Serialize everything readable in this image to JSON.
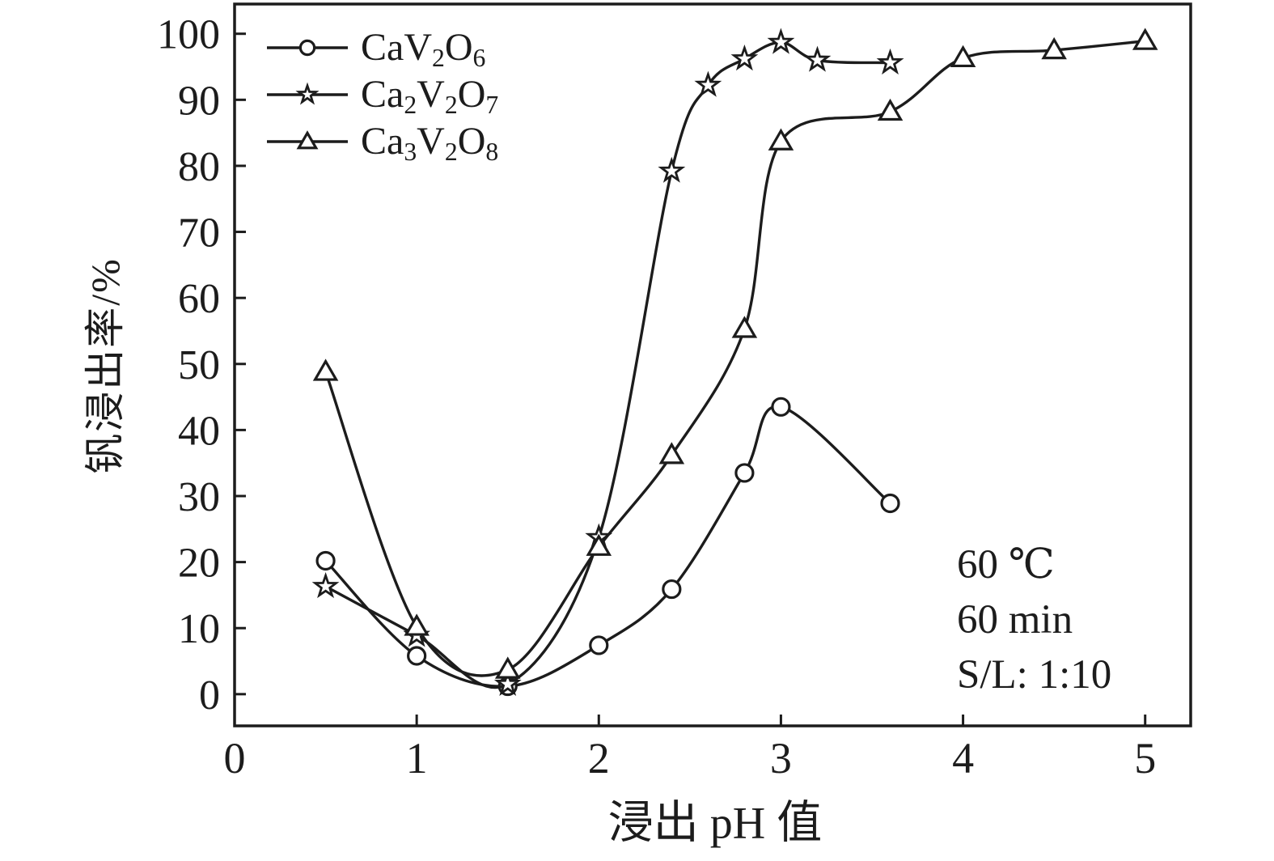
{
  "figure": {
    "background": "#ffffff",
    "ink_color": "#1c1c1c"
  },
  "chart_data": {
    "type": "line",
    "title": "",
    "xlabel": "浸出 pH 值",
    "ylabel": "钒浸出率/%",
    "xlim": [
      0,
      5.25
    ],
    "ylim": [
      -4.8,
      104.5
    ],
    "xticks": [
      0,
      1,
      2,
      3,
      4,
      5
    ],
    "yticks": [
      0,
      10,
      20,
      30,
      40,
      50,
      60,
      70,
      80,
      90,
      100
    ],
    "grid": false,
    "legend_position": "upper-left-inside",
    "series": [
      {
        "name": "CaV2O6",
        "marker": "circle",
        "color": "#1c1c1c",
        "formula": [
          {
            "t": "CaV"
          },
          {
            "t": "2",
            "sub": true
          },
          {
            "t": "O"
          },
          {
            "t": "6",
            "sub": true
          }
        ],
        "x": [
          0.5,
          1.0,
          1.5,
          2.0,
          2.4,
          2.8,
          3.0,
          3.6
        ],
        "y": [
          20.2,
          5.8,
          1.2,
          7.4,
          15.9,
          33.5,
          43.5,
          28.9
        ]
      },
      {
        "name": "Ca2V2O7",
        "marker": "star",
        "color": "#1c1c1c",
        "formula": [
          {
            "t": "Ca"
          },
          {
            "t": "2",
            "sub": true
          },
          {
            "t": "V"
          },
          {
            "t": "2",
            "sub": true
          },
          {
            "t": "O"
          },
          {
            "t": "7",
            "sub": true
          }
        ],
        "x": [
          0.5,
          1.0,
          1.5,
          2.0,
          2.4,
          2.6,
          2.8,
          3.0,
          3.2,
          3.6
        ],
        "y": [
          16.3,
          8.9,
          1.5,
          23.7,
          79.2,
          92.2,
          96.2,
          98.7,
          96.0,
          95.6
        ]
      },
      {
        "name": "Ca3V2O8",
        "marker": "triangle",
        "color": "#1c1c1c",
        "formula": [
          {
            "t": "Ca"
          },
          {
            "t": "3",
            "sub": true
          },
          {
            "t": "V"
          },
          {
            "t": "2",
            "sub": true
          },
          {
            "t": "O"
          },
          {
            "t": "8",
            "sub": true
          }
        ],
        "x": [
          0.5,
          1.0,
          1.5,
          2.0,
          2.4,
          2.8,
          3.0,
          3.6,
          4.0,
          4.5,
          5.0
        ],
        "y": [
          48.8,
          10.2,
          3.7,
          22.3,
          36.2,
          55.3,
          83.7,
          88.2,
          96.3,
          97.5,
          98.9
        ]
      }
    ],
    "annotations": [
      "60 ℃",
      "60 min",
      "S/L: 1:10"
    ]
  }
}
